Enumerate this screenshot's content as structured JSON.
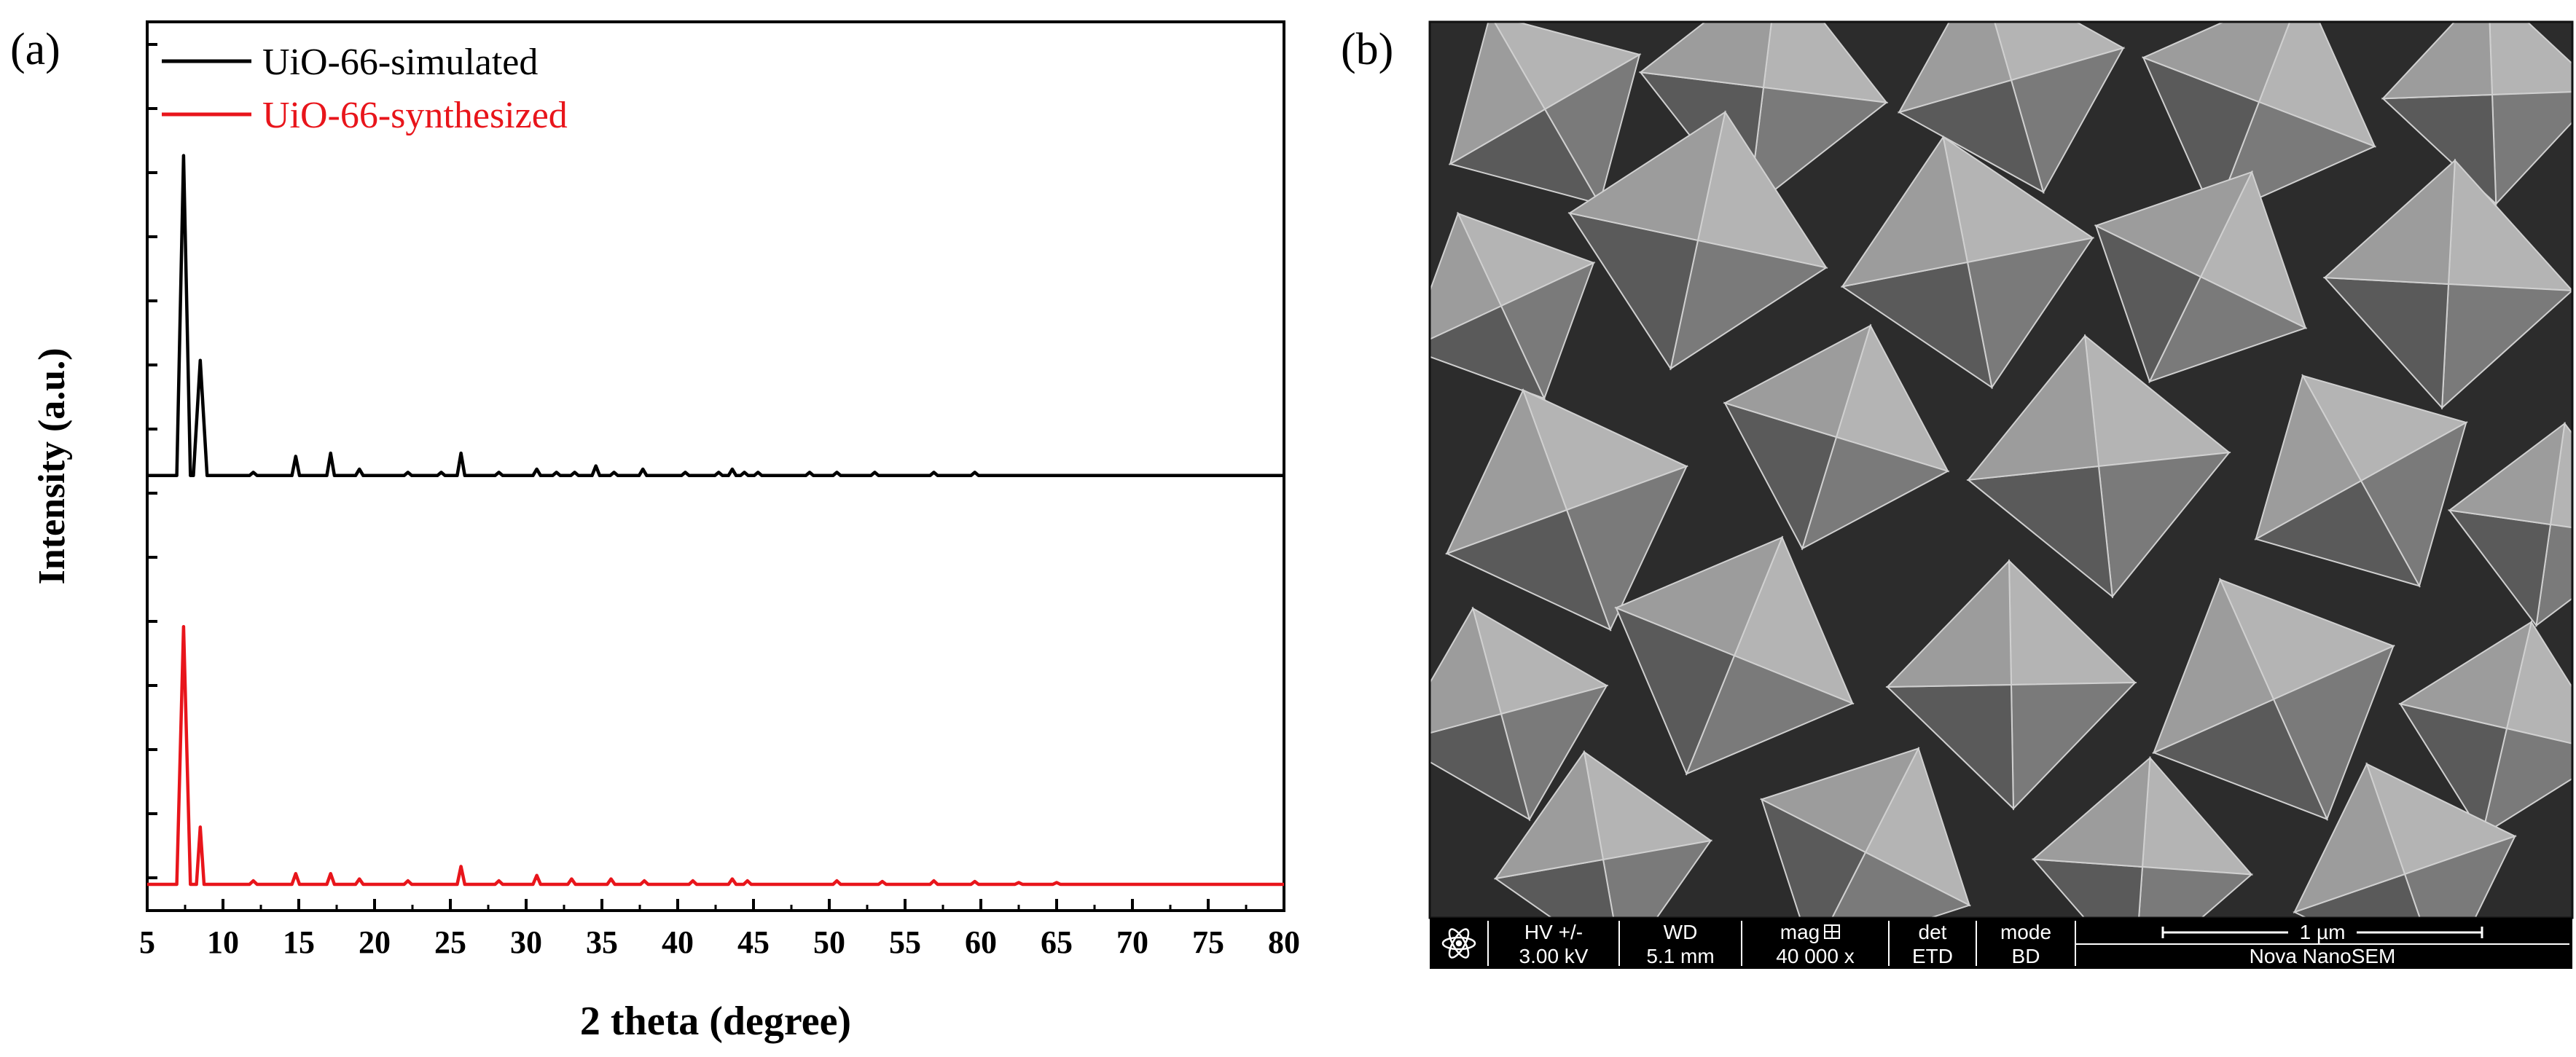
{
  "panel_a": {
    "label": "(a)",
    "chart_data": {
      "type": "line",
      "xlabel": "2 theta (degree)",
      "ylabel": "Intensity (a.u.)",
      "xlim": [
        5,
        80
      ],
      "x_ticks": [
        5,
        10,
        15,
        20,
        25,
        30,
        35,
        40,
        45,
        50,
        55,
        60,
        65,
        70,
        75,
        80
      ],
      "grid": false,
      "legend_position": "top-left",
      "series": [
        {
          "name": "UiO-66-simulated",
          "color": "#000000",
          "offset": 1.0,
          "baseline": 0,
          "peaks": [
            [
              7.4,
              100
            ],
            [
              8.5,
              36
            ],
            [
              12.0,
              1
            ],
            [
              14.8,
              6
            ],
            [
              17.1,
              7
            ],
            [
              19.0,
              2
            ],
            [
              22.2,
              1
            ],
            [
              24.4,
              1
            ],
            [
              25.7,
              7
            ],
            [
              28.2,
              1
            ],
            [
              30.7,
              2
            ],
            [
              32.0,
              1
            ],
            [
              33.2,
              1
            ],
            [
              34.6,
              3
            ],
            [
              35.8,
              1
            ],
            [
              37.7,
              2
            ],
            [
              40.5,
              1
            ],
            [
              42.7,
              1
            ],
            [
              43.6,
              2
            ],
            [
              44.4,
              1
            ],
            [
              45.3,
              1
            ],
            [
              48.7,
              1
            ],
            [
              50.5,
              1
            ],
            [
              53.0,
              1
            ],
            [
              56.9,
              1
            ],
            [
              59.6,
              1
            ]
          ]
        },
        {
          "name": "UiO-66-synthesized",
          "color": "#e8151b",
          "offset": 0.0,
          "baseline": 0,
          "peaks": [
            [
              7.4,
              72
            ],
            [
              8.5,
              16
            ],
            [
              12.0,
              1
            ],
            [
              14.8,
              3
            ],
            [
              17.1,
              3
            ],
            [
              19.0,
              1.5
            ],
            [
              22.2,
              1
            ],
            [
              25.7,
              5
            ],
            [
              28.2,
              1
            ],
            [
              30.7,
              2.5
            ],
            [
              33.0,
              1.5
            ],
            [
              35.6,
              1.5
            ],
            [
              37.8,
              1
            ],
            [
              41.0,
              1
            ],
            [
              43.6,
              1.5
            ],
            [
              44.6,
              1
            ],
            [
              50.5,
              1
            ],
            [
              53.5,
              0.8
            ],
            [
              56.9,
              1
            ],
            [
              59.6,
              0.8
            ],
            [
              62.5,
              0.5
            ],
            [
              65.0,
              0.5
            ]
          ]
        }
      ]
    }
  },
  "panel_b": {
    "label": "(b)",
    "image_description": "SEM micrograph of octahedral UiO-66 crystals",
    "info_bar": {
      "headers": [
        "HV +/-",
        "WD",
        "mag",
        "det",
        "mode"
      ],
      "values": [
        "3.00 kV",
        "5.1 mm",
        "40 000 x",
        "ETD",
        "BD"
      ],
      "scale_label": "1 µm",
      "instrument": "Nova NanoSEM"
    }
  }
}
